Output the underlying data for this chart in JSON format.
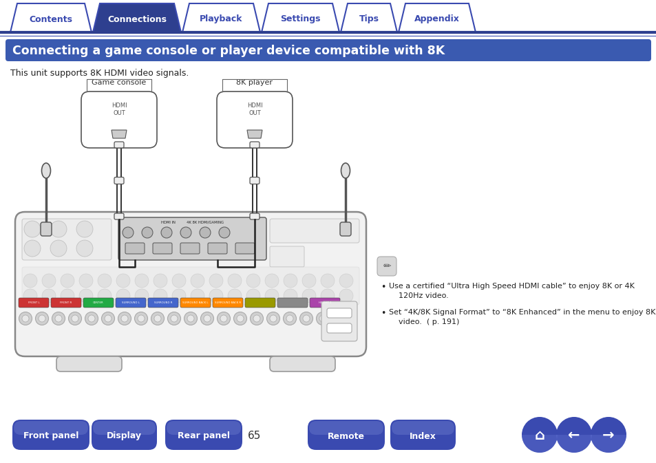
{
  "bg_color": "#ffffff",
  "nav_tabs": [
    "Contents",
    "Connections",
    "Playback",
    "Settings",
    "Tips",
    "Appendix"
  ],
  "nav_active": 1,
  "nav_bg_active": "#2e3f8f",
  "nav_bg_inactive": "#ffffff",
  "nav_text_active": "#ffffff",
  "nav_text_inactive": "#3a4ab0",
  "nav_border_color": "#3a4ab0",
  "title_text": "Connecting a game console or player device compatible with 8K",
  "title_bg": "#3a5ab0",
  "title_fg": "#ffffff",
  "subtitle": "This unit supports 8K HDMI video signals.",
  "bullet1": "Use a certified “Ultra High Speed HDMI cable” to enjoy 8K or 4K\n    120Hz video.",
  "bullet2": "Set “4K/8K Signal Format” to “8K Enhanced” in the menu to enjoy 8K\n    video.  ( p. 191)",
  "game_console_label": "Game console",
  "player_label": "8K player",
  "hdmi_out": "HDMI\nOUT",
  "bottom_buttons": [
    "Front panel",
    "Display",
    "Rear panel",
    "Remote",
    "Index"
  ],
  "btn_bg": "#3a4ab0",
  "btn_fg": "#ffffff",
  "page_number": "65",
  "line_color": "#2e3f8f",
  "tab_line_color": "#3a4ab0"
}
